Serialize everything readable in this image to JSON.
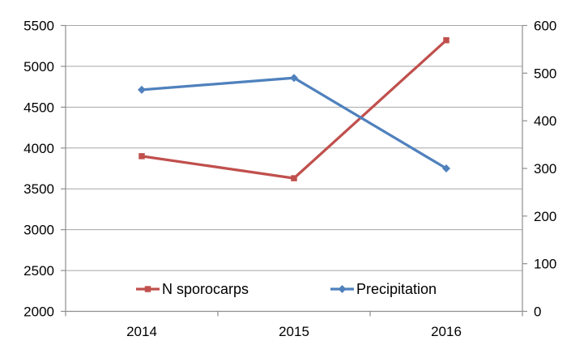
{
  "chart_data": {
    "type": "line",
    "title": "",
    "xlabel": "",
    "ylabel": "",
    "categories": [
      "2014",
      "2015",
      "2016"
    ],
    "series": [
      {
        "name": "N sporocarps",
        "axis": "left",
        "color": "#C0504D",
        "marker": "square",
        "values": [
          3900,
          3630,
          5320
        ]
      },
      {
        "name": "Precipitation",
        "axis": "right",
        "color": "#4F81BD",
        "marker": "diamond",
        "values": [
          465,
          490,
          300
        ]
      }
    ],
    "left_axis": {
      "min": 2000,
      "max": 5500,
      "step": 500,
      "tick_labels": [
        "2000",
        "2500",
        "3000",
        "3500",
        "4000",
        "4500",
        "5000",
        "5500"
      ]
    },
    "right_axis": {
      "min": 0,
      "max": 600,
      "step": 100,
      "tick_labels": [
        "0",
        "100",
        "200",
        "300",
        "400",
        "500",
        "600"
      ]
    },
    "grid": true,
    "legend_position": "bottom-inside"
  },
  "style": {
    "background": "#FFFFFF",
    "grid_color": "#A6A6A6",
    "axis_color": "#8E8E8E",
    "text_color": "#000000"
  }
}
